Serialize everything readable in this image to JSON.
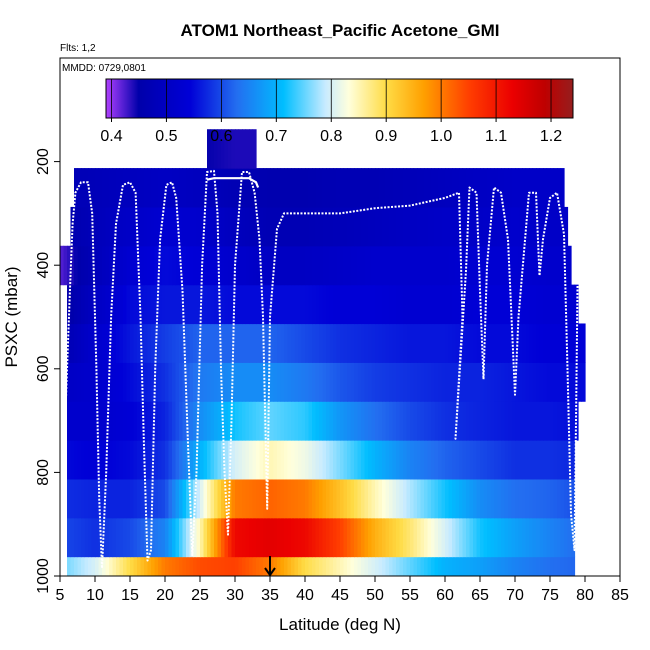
{
  "chart_data": {
    "type": "heatmap",
    "title": "ATOM1 Northeast_Pacific Acetone_GMI",
    "subtitle_flts": "Flts: 1,2",
    "subtitle_mmdd": "MMDD: 0729,0801",
    "xlabel": "Latitude (deg N)",
    "ylabel": "PSXC (mbar)",
    "xlim": [
      5,
      85
    ],
    "ylim": [
      1000,
      0
    ],
    "xticks": [
      5,
      10,
      15,
      20,
      25,
      30,
      35,
      40,
      45,
      50,
      55,
      60,
      65,
      70,
      75,
      80,
      85
    ],
    "yticks": [
      200,
      400,
      600,
      800,
      1000
    ],
    "colorbar": {
      "range": [
        0.39,
        1.24
      ],
      "ticks": [
        0.4,
        0.5,
        0.6,
        0.7,
        0.8,
        0.9,
        1.0,
        1.1,
        1.2
      ],
      "tick_labels": [
        "0.4",
        "0.5",
        "0.6",
        "0.7",
        "0.8",
        "0.9",
        "1.0",
        "1.1",
        "1.2"
      ]
    },
    "marker_latitude": 35,
    "levels_mbar": [
      1000,
      925,
      850,
      775,
      700,
      625,
      550,
      475,
      400,
      325,
      250,
      175
    ],
    "latitude_nodes": [
      5,
      10,
      15,
      20,
      25,
      30,
      35,
      40,
      45,
      50,
      55,
      60,
      65,
      70,
      75,
      80
    ],
    "lat_range_by_level": [
      [
        6,
        78.5
      ],
      [
        6,
        78.5
      ],
      [
        6,
        78.5
      ],
      [
        6,
        78.5
      ],
      [
        6,
        79
      ],
      [
        6,
        80
      ],
      [
        6,
        80
      ],
      [
        6,
        79
      ],
      [
        5,
        78
      ],
      [
        6.5,
        77.5
      ],
      [
        7,
        77
      ],
      [
        26,
        33
      ]
    ],
    "values_by_level": [
      [
        0.75,
        0.8,
        0.9,
        1.0,
        1.04,
        1.05,
        1.0,
        0.9,
        0.85,
        0.8,
        0.75,
        0.7,
        0.68,
        0.65,
        0.63,
        0.62
      ],
      [
        0.6,
        0.58,
        0.6,
        0.65,
        0.85,
        1.12,
        1.14,
        1.12,
        1.05,
        0.95,
        0.88,
        0.8,
        0.72,
        0.68,
        0.65,
        0.62
      ],
      [
        0.58,
        0.57,
        0.57,
        0.6,
        0.8,
        1.0,
        1.02,
        1.0,
        0.93,
        0.85,
        0.78,
        0.72,
        0.66,
        0.63,
        0.62,
        0.6
      ],
      [
        0.55,
        0.54,
        0.55,
        0.58,
        0.7,
        0.8,
        0.85,
        0.82,
        0.76,
        0.7,
        0.65,
        0.62,
        0.6,
        0.58,
        0.58,
        0.57
      ],
      [
        0.52,
        0.52,
        0.54,
        0.57,
        0.66,
        0.72,
        0.75,
        0.73,
        0.67,
        0.63,
        0.6,
        0.58,
        0.57,
        0.56,
        0.56,
        0.55
      ],
      [
        0.5,
        0.52,
        0.55,
        0.58,
        0.64,
        0.66,
        0.66,
        0.64,
        0.61,
        0.59,
        0.58,
        0.57,
        0.57,
        0.56,
        0.55,
        0.55
      ],
      [
        0.46,
        0.52,
        0.56,
        0.59,
        0.62,
        0.62,
        0.62,
        0.6,
        0.58,
        0.57,
        0.56,
        0.56,
        0.55,
        0.55,
        0.54,
        0.54
      ],
      [
        0.43,
        0.5,
        0.55,
        0.56,
        0.56,
        0.55,
        0.55,
        0.55,
        0.54,
        0.54,
        0.53,
        0.53,
        0.54,
        0.54,
        0.53,
        0.53
      ],
      [
        0.42,
        0.48,
        0.53,
        0.55,
        0.54,
        0.52,
        0.5,
        0.5,
        0.51,
        0.52,
        0.52,
        0.52,
        0.53,
        0.53,
        0.52,
        0.52
      ],
      [
        0.45,
        0.48,
        0.51,
        0.53,
        0.52,
        0.49,
        0.47,
        0.47,
        0.48,
        0.49,
        0.5,
        0.51,
        0.51,
        0.52,
        0.51,
        0.51
      ],
      [
        0.47,
        0.48,
        0.49,
        0.5,
        0.49,
        0.47,
        0.46,
        0.46,
        0.47,
        0.47,
        0.48,
        0.49,
        0.5,
        0.51,
        0.51,
        0.51
      ],
      [
        0.45,
        0.45,
        0.45,
        0.45,
        0.45,
        0.44,
        0.44,
        0.45,
        0.45,
        0.45,
        0.45,
        0.45,
        0.45,
        0.45,
        0.45,
        0.45
      ]
    ],
    "flight_track": [
      [
        5,
        990
      ],
      [
        5.5,
        800
      ],
      [
        6,
        600
      ],
      [
        6.5,
        420
      ],
      [
        6.8,
        320
      ],
      [
        7.2,
        260
      ],
      [
        8,
        240
      ],
      [
        9,
        240
      ],
      [
        9.6,
        300
      ],
      [
        10.2,
        600
      ],
      [
        10.6,
        850
      ],
      [
        11,
        985
      ],
      [
        11.6,
        800
      ],
      [
        12.3,
        500
      ],
      [
        13,
        320
      ],
      [
        14,
        245
      ],
      [
        15,
        240
      ],
      [
        15.8,
        260
      ],
      [
        16.5,
        500
      ],
      [
        17,
        750
      ],
      [
        17.5,
        970
      ],
      [
        18,
        950
      ],
      [
        18.6,
        600
      ],
      [
        19.3,
        350
      ],
      [
        20.2,
        245
      ],
      [
        21,
        240
      ],
      [
        21.6,
        270
      ],
      [
        22.5,
        450
      ],
      [
        23.3,
        750
      ],
      [
        23.9,
        960
      ],
      [
        24.5,
        800
      ],
      [
        25.3,
        400
      ],
      [
        26,
        220
      ],
      [
        27,
        218
      ],
      [
        27.5,
        300
      ],
      [
        28,
        600
      ],
      [
        28.5,
        800
      ],
      [
        29,
        920
      ],
      [
        29.5,
        700
      ],
      [
        30,
        400
      ],
      [
        31,
        220
      ],
      [
        32,
        220
      ],
      [
        32.8,
        260
      ],
      [
        33.5,
        350
      ],
      [
        34,
        500
      ],
      [
        34.6,
        870
      ],
      [
        35,
        500
      ],
      [
        36,
        330
      ],
      [
        37,
        300
      ],
      [
        40,
        300
      ],
      [
        45,
        300
      ],
      [
        50,
        290
      ],
      [
        55,
        285
      ],
      [
        60,
        270
      ],
      [
        62,
        260
      ],
      [
        62.5,
        500
      ],
      [
        61.5,
        735
      ],
      [
        63,
        410
      ],
      [
        63.5,
        250
      ],
      [
        64.5,
        260
      ],
      [
        65,
        450
      ],
      [
        65.5,
        620
      ],
      [
        66,
        400
      ],
      [
        67,
        250
      ],
      [
        68,
        260
      ],
      [
        69,
        350
      ],
      [
        70,
        650
      ],
      [
        70.5,
        500
      ],
      [
        72,
        260
      ],
      [
        73,
        260
      ],
      [
        73.5,
        420
      ],
      [
        74,
        350
      ],
      [
        75,
        270
      ],
      [
        76,
        260
      ],
      [
        77,
        340
      ],
      [
        77.5,
        600
      ],
      [
        78,
        880
      ],
      [
        78.5,
        950
      ],
      [
        78.8,
        600
      ],
      [
        79,
        350
      ]
    ],
    "profile_upper": [
      [
        26,
        235
      ],
      [
        27,
        232
      ],
      [
        28,
        232
      ],
      [
        29,
        232
      ],
      [
        30,
        232
      ],
      [
        31,
        232
      ],
      [
        32,
        232
      ],
      [
        33,
        240
      ],
      [
        33.3,
        250
      ]
    ]
  }
}
